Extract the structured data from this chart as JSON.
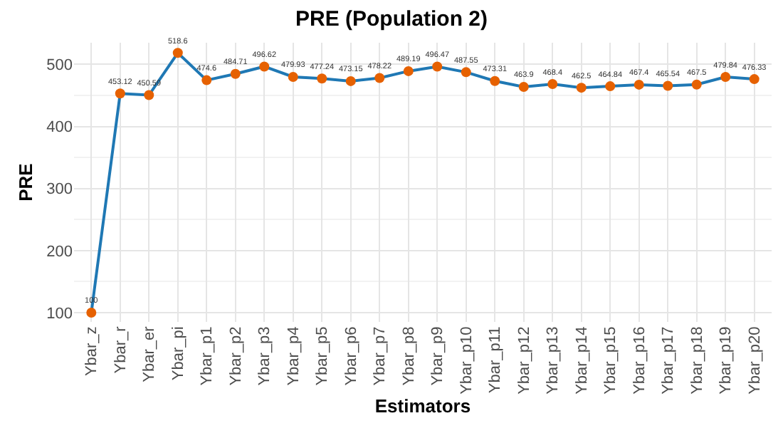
{
  "chart_data": {
    "type": "line",
    "title": "PRE (Population 2)",
    "xlabel": "Estimators",
    "ylabel": "PRE",
    "categories": [
      "Ybar_z",
      "Ybar_r",
      "Ybar_er",
      "Ybar_pi",
      "Ybar_p1",
      "Ybar_p2",
      "Ybar_p3",
      "Ybar_p4",
      "Ybar_p5",
      "Ybar_p6",
      "Ybar_p7",
      "Ybar_p8",
      "Ybar_p9",
      "Ybar_p10",
      "Ybar_p11",
      "Ybar_p12",
      "Ybar_p13",
      "Ybar_p14",
      "Ybar_p15",
      "Ybar_p16",
      "Ybar_p17",
      "Ybar_p18",
      "Ybar_p19",
      "Ybar_p20"
    ],
    "series": [
      {
        "color": "#1f78b4",
        "colors": [
          "#e66101",
          "#e66101",
          "#e66101",
          "#e66101",
          "#e66101",
          "#e66101",
          "#e66101",
          "#e66101",
          "#e66101",
          "#e66101",
          "#e66101",
          "#e66101",
          "#e66101",
          "#e66101",
          "#e66101",
          "#e66101",
          "#e66101",
          "#e66101",
          "#e66101",
          "#e66101",
          "#e66101",
          "#e66101",
          "#e66101",
          "#e66101"
        ],
        "values": [
          100,
          453.12,
          450.59,
          518.6,
          474.6,
          484.71,
          496.62,
          479.93,
          477.24,
          473.15,
          478.22,
          489.19,
          496.47,
          487.55,
          473.31,
          463.9,
          468.4,
          462.5,
          464.84,
          467.4,
          465.54,
          467.5,
          479.84,
          476.33
        ]
      }
    ],
    "ylim": [
      85,
      535
    ],
    "yticks": [
      100,
      200,
      300,
      400,
      500
    ],
    "grid": true,
    "marker": "circle",
    "line_style": "solid",
    "data_labels": true,
    "legend": false
  }
}
